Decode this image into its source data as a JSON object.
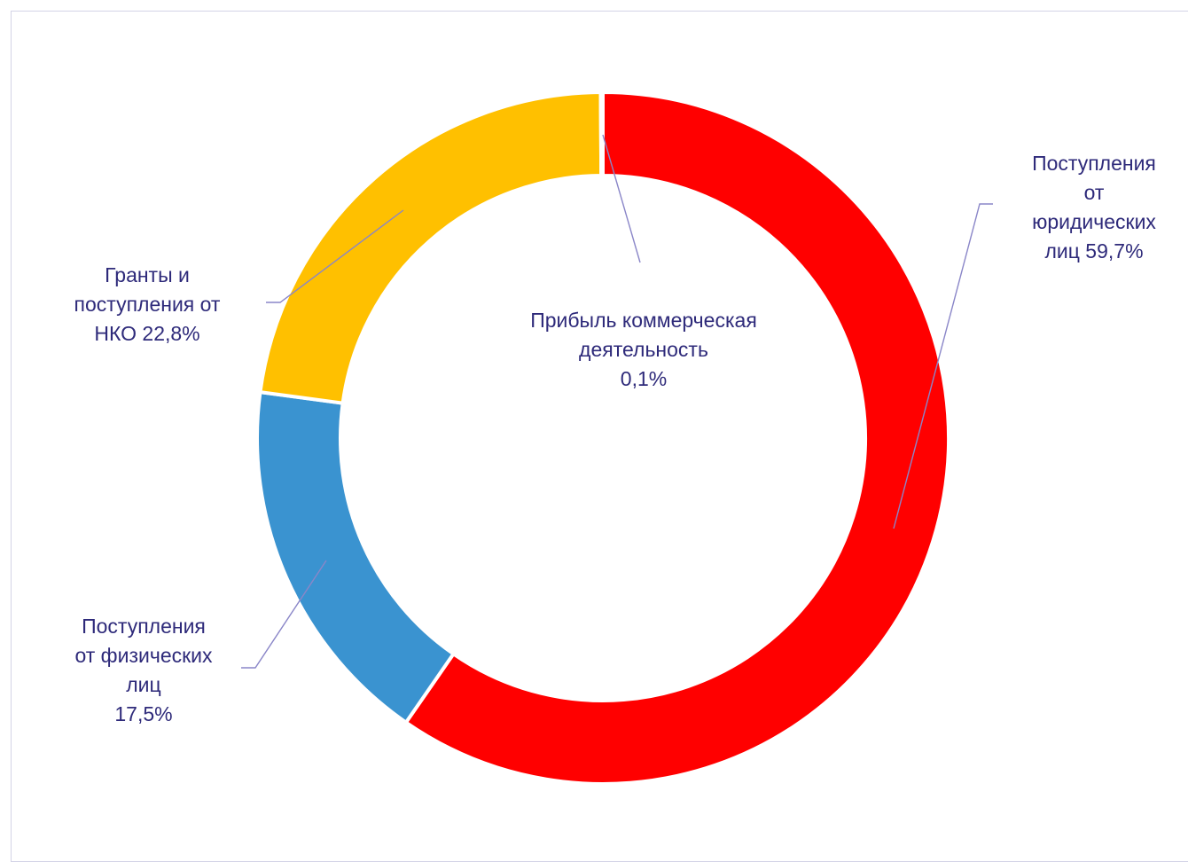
{
  "chart_data": {
    "type": "pie",
    "variant": "donut",
    "slices": [
      {
        "label_lines": [
          "Поступления",
          "от",
          "юридических",
          "лиц 59,7%"
        ],
        "value": 59.7,
        "color": "#ff0000"
      },
      {
        "label_lines": [
          "Поступления",
          "от физических",
          "лиц",
          "17,5%"
        ],
        "value": 17.5,
        "color": "#3a93d0"
      },
      {
        "label_lines": [
          "Гранты и",
          "поступления от",
          "НКО 22,8%"
        ],
        "value": 22.8,
        "color": "#ffc000"
      },
      {
        "label_lines": [
          "Прибыль коммерческая",
          "деятельность",
          "0,1%"
        ],
        "value": 0.1,
        "color": "#ff0000"
      }
    ],
    "label_color": "#2e2a7a",
    "leader_line_color": "#8a86c8",
    "slice_border_color": "#ffffff",
    "legend": "none"
  }
}
